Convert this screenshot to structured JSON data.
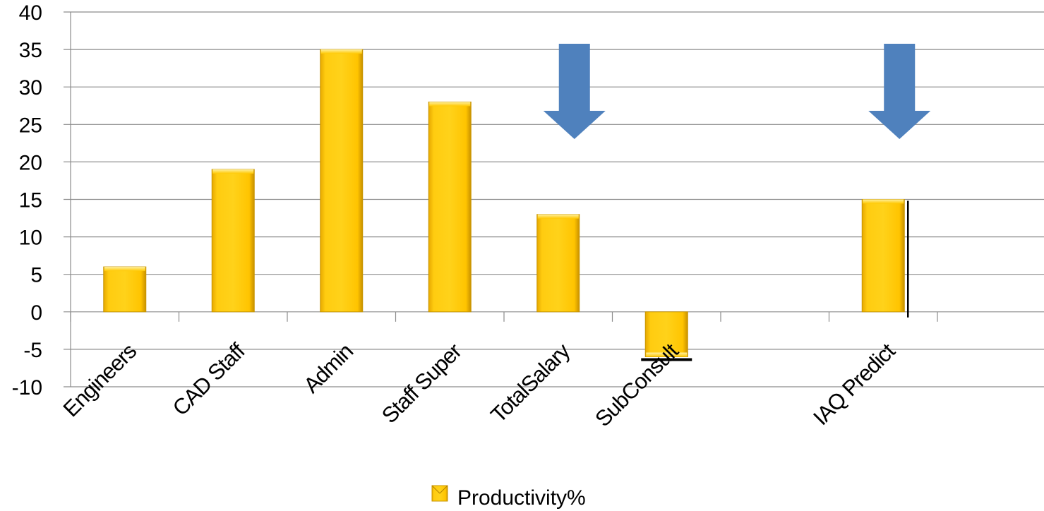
{
  "chart_data": {
    "type": "bar",
    "categories": [
      "Engineers",
      "CAD Staff",
      "Admin",
      "Staff Super",
      "TotalSalary",
      "SubConsult",
      "",
      "IAQ Predict",
      ""
    ],
    "series": [
      {
        "name": "Productivity%",
        "values": [
          6,
          19,
          35,
          28,
          13,
          -6,
          null,
          15,
          null
        ]
      }
    ],
    "ylim": [
      -10,
      40
    ],
    "yticks": [
      -10,
      -5,
      0,
      5,
      10,
      15,
      20,
      25,
      30,
      35,
      40
    ],
    "grid": true,
    "legend": "bottom",
    "colors": {
      "bar": "#FFC800",
      "bar_edge": "#C89600",
      "arrow": "#4F81BD",
      "grid": "#8C8C8C"
    },
    "annotations": [
      {
        "type": "down-arrow",
        "category": "TotalSalary"
      },
      {
        "type": "down-arrow",
        "category": "IAQ Predict"
      }
    ]
  }
}
